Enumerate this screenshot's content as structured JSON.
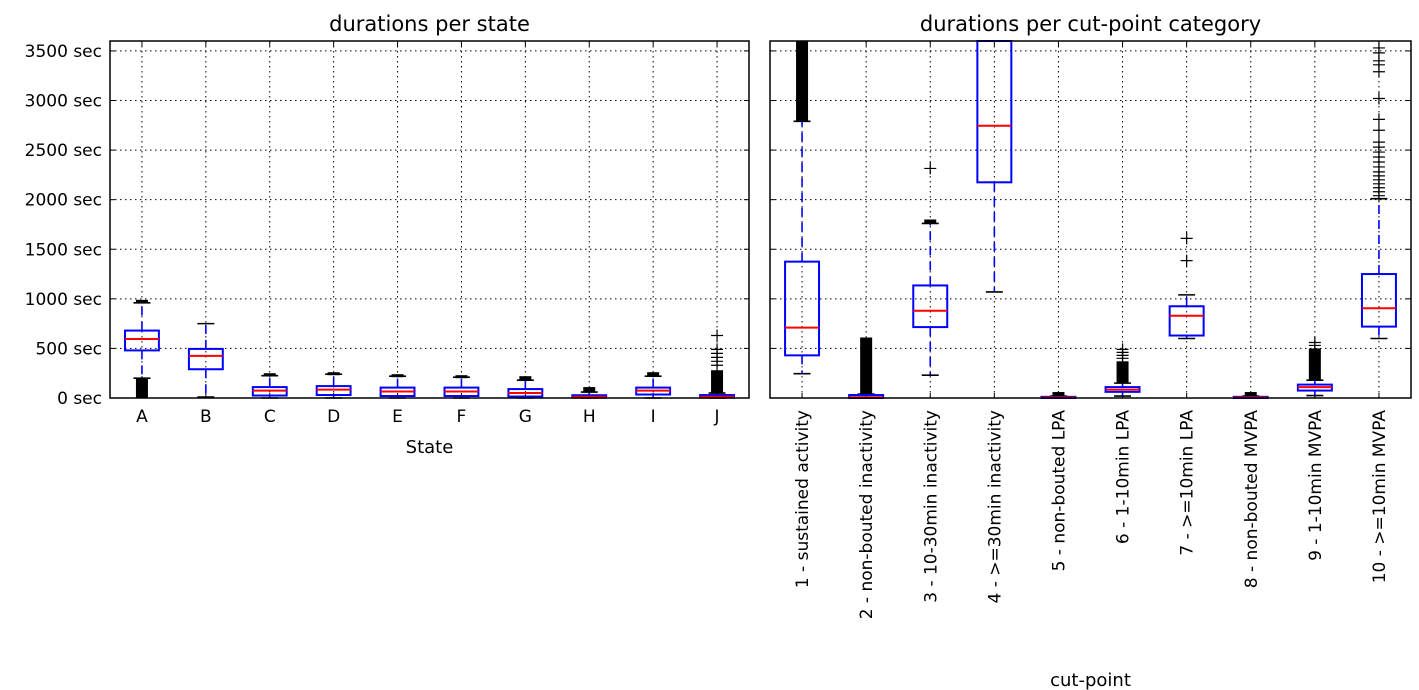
{
  "colors": {
    "box": "#0000ff",
    "median": "#ff0000",
    "flier": "#000000",
    "grid": "#000000"
  },
  "chart_data": [
    {
      "type": "box",
      "title": "durations per state",
      "xlabel": "State",
      "ylabel": "",
      "ylim": [
        0,
        3600
      ],
      "yticks": [
        0,
        500,
        1000,
        1500,
        2000,
        2500,
        3000,
        3500
      ],
      "ytick_labels": [
        "0 sec",
        "500 sec",
        "1000 sec",
        "1500 sec",
        "2000 sec",
        "2500 sec",
        "3000 sec",
        "3500 sec"
      ],
      "grid": true,
      "categories": [
        "A",
        "B",
        "C",
        "D",
        "E",
        "F",
        "G",
        "H",
        "I",
        "J"
      ],
      "boxes": [
        {
          "q1": 480,
          "median": 595,
          "q3": 680,
          "whislo": 200,
          "whishi": 960,
          "fliers_range": [
            [
              0,
              200
            ],
            [
              960,
              990
            ]
          ],
          "fliers": []
        },
        {
          "q1": 290,
          "median": 425,
          "q3": 495,
          "whislo": 10,
          "whishi": 750,
          "fliers_range": [],
          "fliers": []
        },
        {
          "q1": 25,
          "median": 75,
          "q3": 110,
          "whislo": 0,
          "whishi": 225,
          "fliers_range": [
            [
              225,
              250
            ]
          ],
          "fliers": []
        },
        {
          "q1": 30,
          "median": 85,
          "q3": 120,
          "whislo": 0,
          "whishi": 240,
          "fliers_range": [
            [
              240,
              260
            ]
          ],
          "fliers": []
        },
        {
          "q1": 20,
          "median": 65,
          "q3": 105,
          "whislo": 0,
          "whishi": 220,
          "fliers_range": [
            [
              220,
              240
            ]
          ],
          "fliers": []
        },
        {
          "q1": 20,
          "median": 65,
          "q3": 105,
          "whislo": 0,
          "whishi": 210,
          "fliers_range": [
            [
              210,
              230
            ]
          ],
          "fliers": []
        },
        {
          "q1": 15,
          "median": 50,
          "q3": 90,
          "whislo": 0,
          "whishi": 180,
          "fliers_range": [
            [
              180,
              220
            ]
          ],
          "fliers": []
        },
        {
          "q1": 3,
          "median": 12,
          "q3": 28,
          "whislo": 0,
          "whishi": 60,
          "fliers_range": [
            [
              60,
              110
            ]
          ],
          "fliers": []
        },
        {
          "q1": 35,
          "median": 75,
          "q3": 105,
          "whislo": 0,
          "whishi": 220,
          "fliers_range": [
            [
              220,
              260
            ]
          ],
          "fliers": []
        },
        {
          "q1": 3,
          "median": 12,
          "q3": 30,
          "whislo": 0,
          "whishi": 50,
          "fliers_range": [
            [
              50,
              280
            ]
          ],
          "fliers": [
            330,
            370,
            410,
            450,
            490,
            630
          ]
        }
      ]
    },
    {
      "type": "box",
      "title": "durations per cut-point category",
      "xlabel": "cut-point",
      "ylabel": "",
      "ylim": [
        0,
        3600
      ],
      "yticks": [
        0,
        500,
        1000,
        1500,
        2000,
        2500,
        3000,
        3500
      ],
      "ytick_labels": [],
      "grid": true,
      "categories": [
        "1 - sustained activity",
        "2 - non-bouted inactivity",
        "3 - 10-30min inactivity",
        "4 - >=30min inactivity",
        "5 - non-bouted LPA",
        "6 - 1-10min LPA",
        "7 - >=10min LPA",
        "8 - non-bouted MVPA",
        "9 - 1-10min MVPA",
        "10 - >=10min MVPA"
      ],
      "boxes": [
        {
          "q1": 430,
          "median": 710,
          "q3": 1375,
          "whislo": 245,
          "whishi": 2790,
          "fliers_range": [
            [
              2790,
              3600
            ]
          ],
          "fliers": []
        },
        {
          "q1": 0,
          "median": 8,
          "q3": 30,
          "whislo": 0,
          "whishi": 40,
          "fliers_range": [
            [
              40,
              610
            ]
          ],
          "fliers": []
        },
        {
          "q1": 715,
          "median": 880,
          "q3": 1135,
          "whislo": 230,
          "whishi": 1760,
          "fliers_range": [
            [
              1760,
              1800
            ]
          ],
          "fliers": [
            2315
          ]
        },
        {
          "q1": 2175,
          "median": 2745,
          "q3": 3600,
          "whislo": 1070,
          "whishi": 3600,
          "fliers_range": [],
          "fliers": []
        },
        {
          "q1": 0,
          "median": 5,
          "q3": 12,
          "whislo": 0,
          "whishi": 20,
          "fliers_range": [
            [
              20,
              60
            ]
          ],
          "fliers": []
        },
        {
          "q1": 62,
          "median": 85,
          "q3": 110,
          "whislo": 20,
          "whishi": 150,
          "fliers_range": [
            [
              150,
              370
            ]
          ],
          "fliers": [
            400,
            430,
            460,
            490
          ]
        },
        {
          "q1": 630,
          "median": 830,
          "q3": 925,
          "whislo": 600,
          "whishi": 1040,
          "fliers_range": [],
          "fliers": [
            1385,
            1610
          ]
        },
        {
          "q1": 0,
          "median": 5,
          "q3": 12,
          "whislo": 0,
          "whishi": 20,
          "fliers_range": [
            [
              20,
              60
            ]
          ],
          "fliers": []
        },
        {
          "q1": 75,
          "median": 110,
          "q3": 135,
          "whislo": 25,
          "whishi": 180,
          "fliers_range": [
            [
              180,
              500
            ]
          ],
          "fliers": [
            530,
            560
          ]
        },
        {
          "q1": 720,
          "median": 905,
          "q3": 1250,
          "whislo": 600,
          "whishi": 2010,
          "fliers_range": [],
          "fliers": [
            2040,
            2080,
            2120,
            2160,
            2200,
            2240,
            2280,
            2330,
            2380,
            2430,
            2480,
            2530,
            2580,
            2700,
            2810,
            3020,
            3290,
            3360,
            3400,
            3480,
            3530
          ]
        }
      ]
    }
  ]
}
